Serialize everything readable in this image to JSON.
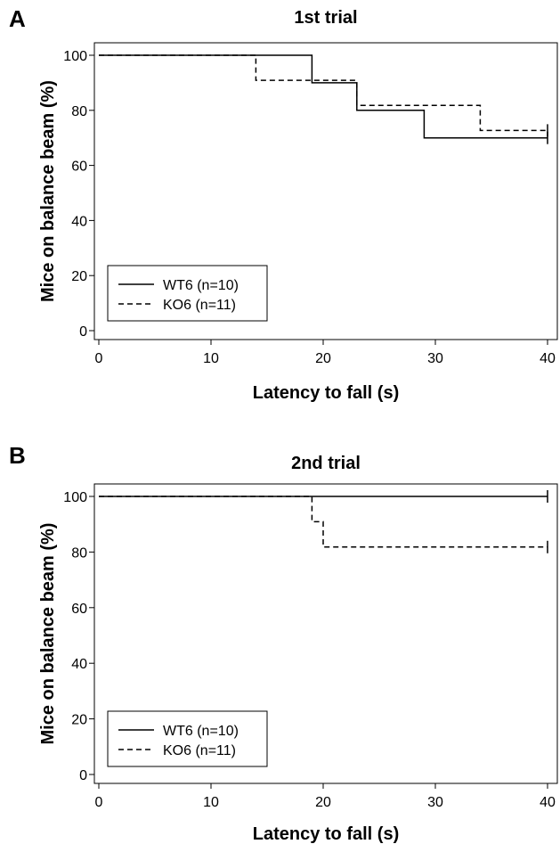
{
  "chart_data": [
    {
      "type": "line",
      "panel": "A",
      "title": "1st trial",
      "xlabel": "Latency to fall (s)",
      "ylabel": "Mice on balance beam (%)",
      "xlim": [
        0,
        40
      ],
      "ylim": [
        0,
        100
      ],
      "xticks": [
        0,
        10,
        20,
        30,
        40
      ],
      "yticks": [
        0,
        20,
        40,
        60,
        80,
        100
      ],
      "legend_position": "bottom-left",
      "series": [
        {
          "name": "WT6 (n=10)",
          "style": "solid",
          "x": [
            0,
            19,
            23,
            29,
            40
          ],
          "y": [
            100,
            90,
            80,
            70,
            70
          ],
          "censored_x": [
            40
          ]
        },
        {
          "name": "KO6 (n=11)",
          "style": "dashed",
          "x": [
            0,
            14,
            23,
            34,
            40
          ],
          "y": [
            100,
            90.9,
            81.8,
            72.7,
            72.7
          ],
          "censored_x": [
            40
          ]
        }
      ]
    },
    {
      "type": "line",
      "panel": "B",
      "title": "2nd trial",
      "xlabel": "Latency to fall (s)",
      "ylabel": "Mice on balance beam (%)",
      "xlim": [
        0,
        40
      ],
      "ylim": [
        0,
        100
      ],
      "xticks": [
        0,
        10,
        20,
        30,
        40
      ],
      "yticks": [
        0,
        20,
        40,
        60,
        80,
        100
      ],
      "legend_position": "bottom-left",
      "series": [
        {
          "name": "WT6 (n=10)",
          "style": "solid",
          "x": [
            0,
            40
          ],
          "y": [
            100,
            100
          ],
          "censored_x": [
            40
          ]
        },
        {
          "name": "KO6 (n=11)",
          "style": "dashed",
          "x": [
            0,
            19,
            20,
            40
          ],
          "y": [
            100,
            90.9,
            81.8,
            81.8
          ],
          "censored_x": [
            40
          ]
        }
      ]
    }
  ]
}
